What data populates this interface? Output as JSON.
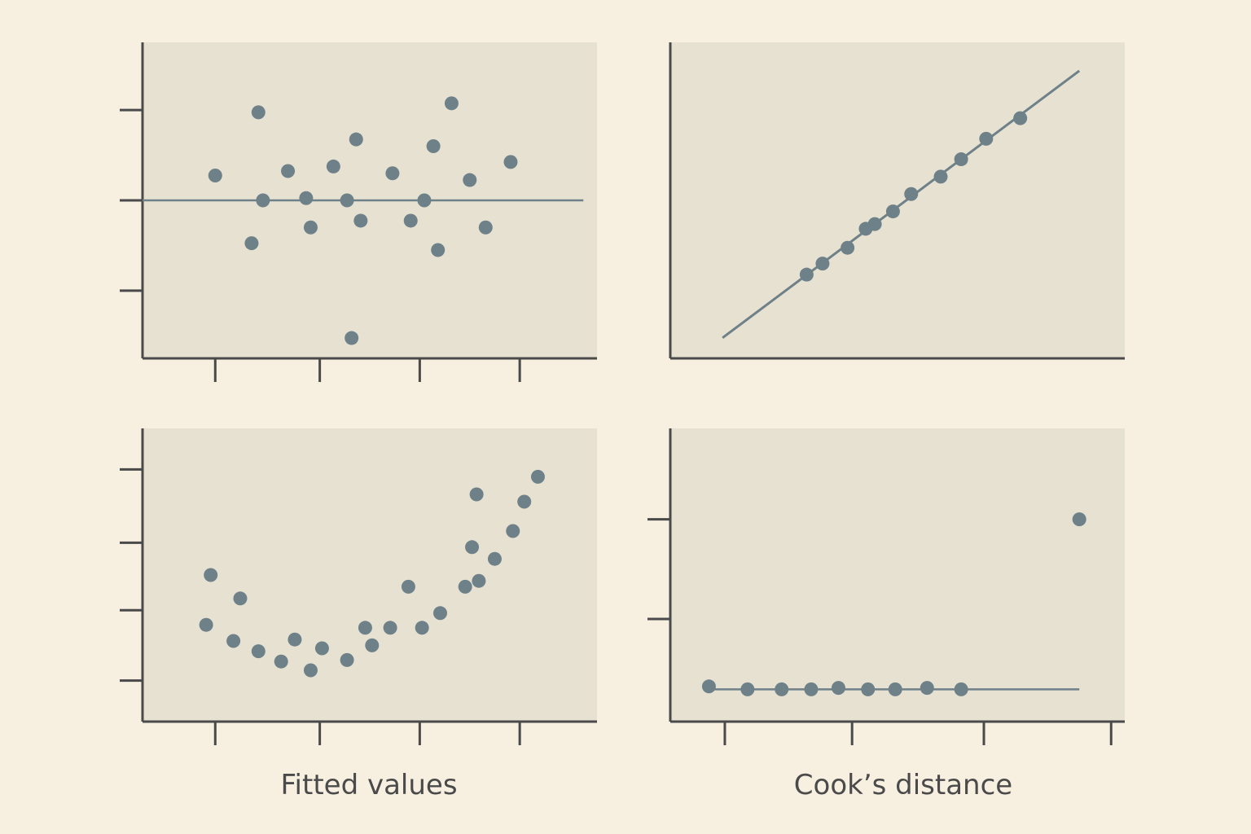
{
  "colors": {
    "background": "#f7efe0",
    "panel": "#e7e1d1",
    "axis": "#4a4a4a",
    "point": "#6e8189",
    "line": "#6e8189"
  },
  "chart_data": [
    {
      "id": "residuals-vs-fitted",
      "type": "scatter",
      "title": "",
      "xlabel": "",
      "ylabel": "",
      "xlim": [
        0,
        10
      ],
      "ylim": [
        -3.5,
        3.5
      ],
      "x_ticks": [
        1.6,
        3.9,
        6.1,
        8.3
      ],
      "y_ticks": [
        -2,
        0,
        2
      ],
      "grid": false,
      "reference_line": {
        "y": 0,
        "x_range": [
          0,
          9.7
        ]
      },
      "series": [
        {
          "name": "",
          "points": [
            [
              1.6,
              0.55
            ],
            [
              2.4,
              -0.95
            ],
            [
              2.55,
              1.95
            ],
            [
              2.65,
              0.0
            ],
            [
              3.2,
              0.65
            ],
            [
              3.6,
              0.05
            ],
            [
              3.7,
              -0.6
            ],
            [
              4.2,
              0.75
            ],
            [
              4.5,
              0.0
            ],
            [
              4.6,
              -3.05
            ],
            [
              4.7,
              1.35
            ],
            [
              4.8,
              -0.45
            ],
            [
              5.5,
              0.6
            ],
            [
              5.9,
              -0.45
            ],
            [
              6.2,
              0.0
            ],
            [
              6.4,
              1.2
            ],
            [
              6.5,
              -1.1
            ],
            [
              6.8,
              2.15
            ],
            [
              7.2,
              0.45
            ],
            [
              7.55,
              -0.6
            ],
            [
              8.1,
              0.85
            ]
          ]
        }
      ]
    },
    {
      "id": "normal-qq",
      "type": "line",
      "title": "",
      "xlabel": "",
      "ylabel": "",
      "xlim": [
        0,
        10
      ],
      "ylim": [
        0,
        10
      ],
      "grid": false,
      "line": [
        [
          1.15,
          0.65
        ],
        [
          9.0,
          9.1
        ]
      ],
      "series": [
        {
          "name": "",
          "points": [
            [
              3.0,
              2.65
            ],
            [
              3.35,
              3.0
            ],
            [
              3.9,
              3.5
            ],
            [
              4.3,
              4.1
            ],
            [
              4.5,
              4.25
            ],
            [
              4.9,
              4.65
            ],
            [
              5.3,
              5.2
            ],
            [
              5.95,
              5.75
            ],
            [
              6.4,
              6.3
            ],
            [
              6.95,
              6.95
            ],
            [
              7.7,
              7.6
            ]
          ]
        }
      ]
    },
    {
      "id": "scale-location",
      "type": "scatter",
      "title": "",
      "xlabel": "Fitted values",
      "ylabel": "",
      "xlim": [
        0,
        10
      ],
      "ylim": [
        0,
        10
      ],
      "x_ticks": [
        1.6,
        3.9,
        6.1,
        8.3
      ],
      "y_ticks": [
        1.4,
        3.8,
        6.1,
        8.6
      ],
      "grid": false,
      "series": [
        {
          "name": "",
          "points": [
            [
              1.4,
              3.3
            ],
            [
              1.5,
              5.0
            ],
            [
              2.0,
              2.75
            ],
            [
              2.15,
              4.2
            ],
            [
              2.55,
              2.4
            ],
            [
              3.05,
              2.05
            ],
            [
              3.35,
              2.8
            ],
            [
              3.7,
              1.75
            ],
            [
              3.95,
              2.5
            ],
            [
              4.5,
              2.1
            ],
            [
              4.9,
              3.2
            ],
            [
              5.05,
              2.6
            ],
            [
              5.45,
              3.2
            ],
            [
              5.85,
              4.6
            ],
            [
              6.15,
              3.2
            ],
            [
              6.55,
              3.7
            ],
            [
              7.1,
              4.6
            ],
            [
              7.25,
              5.95
            ],
            [
              7.35,
              7.75
            ],
            [
              7.4,
              4.8
            ],
            [
              7.75,
              5.55
            ],
            [
              8.15,
              6.5
            ],
            [
              8.4,
              7.5
            ],
            [
              8.7,
              8.35
            ]
          ]
        }
      ]
    },
    {
      "id": "residuals-vs-leverage",
      "type": "scatter",
      "title": "",
      "xlabel": "Cook’s distance",
      "ylabel": "",
      "xlim": [
        0,
        10
      ],
      "ylim": [
        0,
        10
      ],
      "x_ticks": [
        1.2,
        4.0,
        6.9,
        9.7
      ],
      "y_ticks": [
        3.5,
        6.9
      ],
      "grid": false,
      "reference_line": {
        "y": 1.1,
        "x_range": [
          0.85,
          9.0
        ]
      },
      "series": [
        {
          "name": "",
          "points": [
            [
              0.85,
              1.2
            ],
            [
              1.7,
              1.1
            ],
            [
              2.45,
              1.1
            ],
            [
              3.1,
              1.1
            ],
            [
              3.7,
              1.15
            ],
            [
              4.35,
              1.1
            ],
            [
              4.95,
              1.1
            ],
            [
              5.65,
              1.15
            ],
            [
              6.4,
              1.1
            ],
            [
              9.0,
              6.9
            ]
          ]
        }
      ]
    }
  ]
}
